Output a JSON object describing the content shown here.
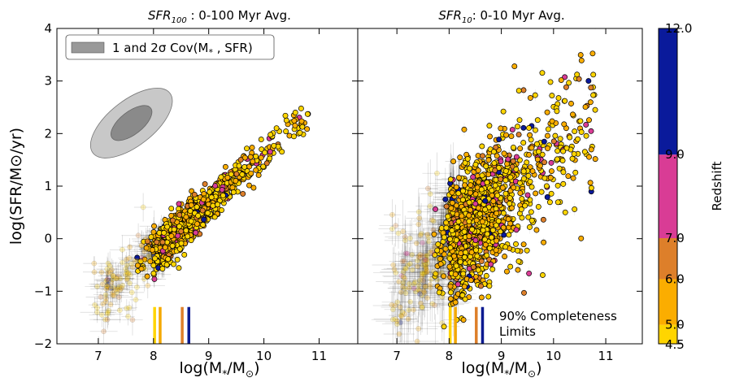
{
  "chart_data": [
    {
      "type": "scatter",
      "title_main": "SFR",
      "title_sub": "100",
      "title_rest": " : 0-100 Myr Avg.",
      "xlabel": "log(M",
      "xlabel_sub1": "*",
      "xlabel_mid": "/M",
      "xlabel_sub2": "⊙",
      "xlabel_end": ")",
      "ylabel": "log(SFR/M⊙/yr)",
      "xlim": [
        6.25,
        11.7
      ],
      "ylim": [
        -2,
        4
      ],
      "xticks": [
        "7",
        "8",
        "9",
        "10",
        "11"
      ],
      "yticks": [
        "−2",
        "−1",
        "0",
        "1",
        "2",
        "3",
        "4"
      ],
      "legend": {
        "label": "1 and 2σ Cov(M",
        "label_sub": "*",
        "label_end": " , SFR)",
        "placement": "top-left",
        "color": "#999999"
      },
      "covariance": {
        "center": [
          7.6,
          2.2
        ],
        "angle_deg": 38
      },
      "trend": {
        "slope": 0.93,
        "intercept": -7.7,
        "scatter": 0.18,
        "x_range": [
          7.1,
          10.8
        ]
      },
      "completeness_limits": [
        {
          "x": 8.02,
          "color": "#ffd400"
        },
        {
          "x": 8.12,
          "color": "#f4a800"
        },
        {
          "x": 8.52,
          "color": "#dd7f2a"
        },
        {
          "x": 8.64,
          "color": "#0a1a90"
        }
      ],
      "annotation": {
        "line1": "",
        "line2": ""
      }
    },
    {
      "type": "scatter",
      "title_main": "SFR",
      "title_sub": "10",
      "title_rest": ": 0-10 Myr Avg.",
      "xlabel": "log(M",
      "xlabel_sub1": "*",
      "xlabel_mid": "/M",
      "xlabel_sub2": "⊙",
      "xlabel_end": ")",
      "xlim": [
        6.25,
        11.7
      ],
      "ylim": [
        -2,
        4
      ],
      "xticks": [
        "7",
        "8",
        "9",
        "10",
        "11"
      ],
      "trend": {
        "slope": 0.85,
        "intercept": -6.9,
        "scatter": 0.55,
        "x_range": [
          7.0,
          10.8
        ]
      },
      "completeness_limits": [
        {
          "x": 8.02,
          "color": "#ffd400"
        },
        {
          "x": 8.12,
          "color": "#f4a800"
        },
        {
          "x": 8.52,
          "color": "#dd7f2a"
        },
        {
          "x": 8.64,
          "color": "#0a1a90"
        }
      ],
      "annotation": {
        "line1": "90% Completeness",
        "line2": "Limits"
      }
    }
  ],
  "colorbar": {
    "label": "Redshift",
    "range": [
      4.5,
      12.0
    ],
    "ticks": [
      "4.5",
      "5.0",
      "6.0",
      "7.0",
      "9.0",
      "12.0"
    ],
    "bands": [
      {
        "from": 4.5,
        "to": 5.0,
        "color": "#ffd500"
      },
      {
        "from": 5.0,
        "to": 6.0,
        "color": "#fbad00"
      },
      {
        "from": 6.0,
        "to": 7.0,
        "color": "#dd7f2a"
      },
      {
        "from": 7.0,
        "to": 9.0,
        "color": "#d93c95"
      },
      {
        "from": 9.0,
        "to": 12.0,
        "color": "#0a1a9b"
      }
    ]
  }
}
